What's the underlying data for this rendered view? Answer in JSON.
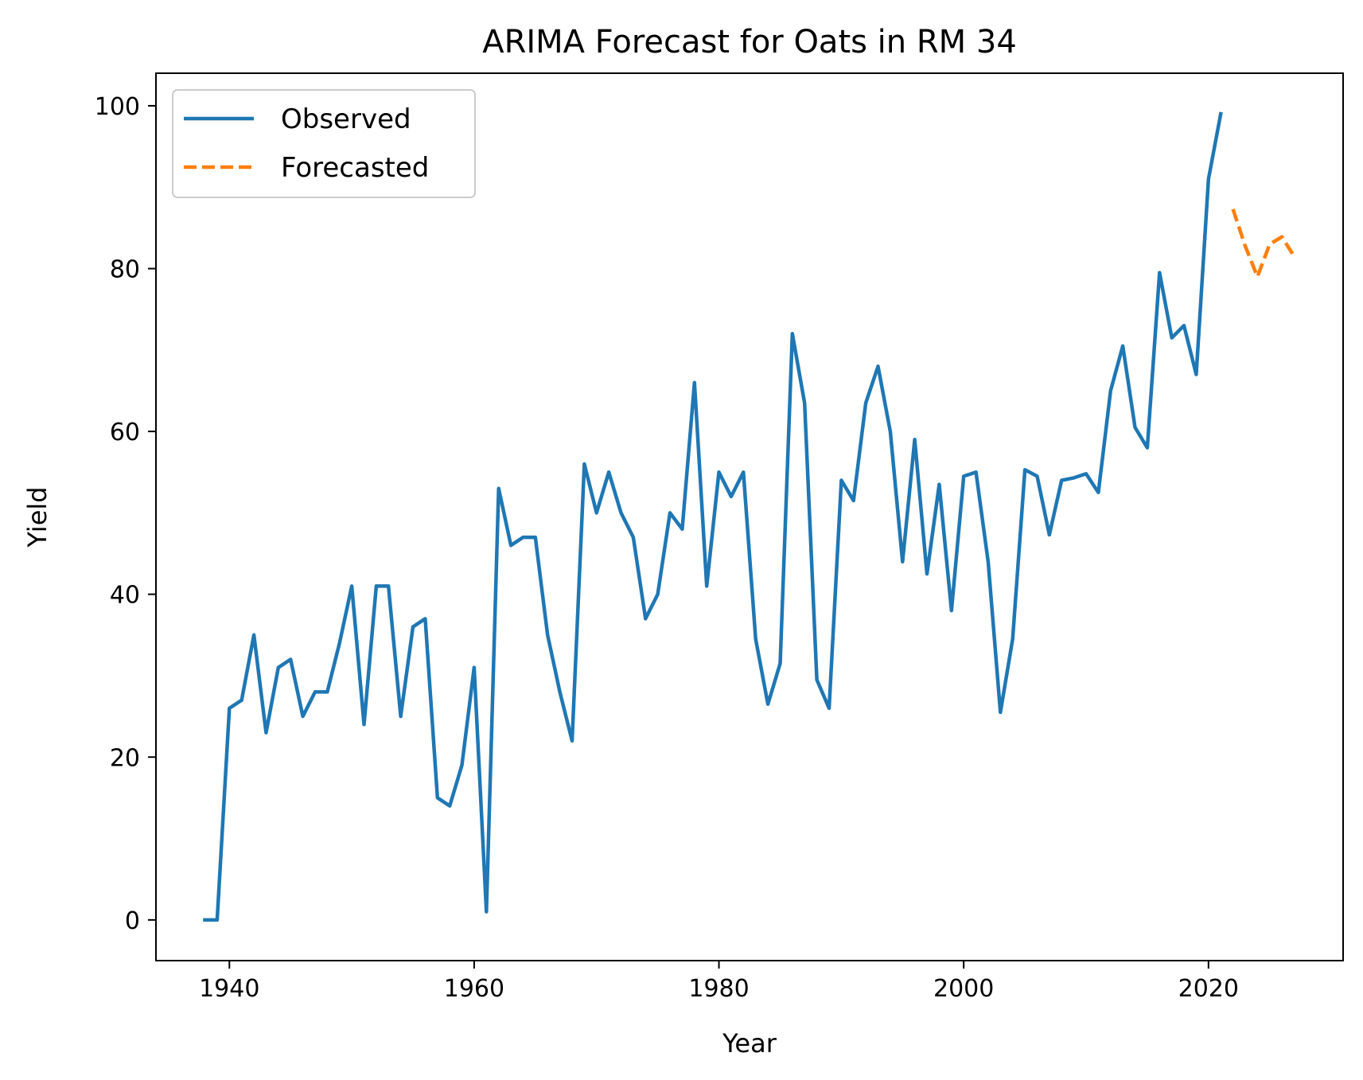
{
  "chart_data": {
    "type": "line",
    "title": "ARIMA Forecast for Oats in RM 34",
    "xlabel": "Year",
    "ylabel": "Yield",
    "xlim": [
      1934,
      2031
    ],
    "ylim": [
      -5,
      104
    ],
    "xticks": [
      1940,
      1960,
      1980,
      2000,
      2020
    ],
    "yticks": [
      0,
      20,
      40,
      60,
      80,
      100
    ],
    "grid": false,
    "legend": "top-left",
    "series": [
      {
        "name": "Observed",
        "color": "#1f77b4",
        "style": "solid",
        "x": [
          1938,
          1939,
          1940,
          1941,
          1942,
          1943,
          1944,
          1945,
          1946,
          1947,
          1948,
          1949,
          1950,
          1951,
          1952,
          1953,
          1954,
          1955,
          1956,
          1957,
          1958,
          1959,
          1960,
          1961,
          1962,
          1963,
          1964,
          1965,
          1966,
          1967,
          1968,
          1969,
          1970,
          1971,
          1972,
          1973,
          1974,
          1975,
          1976,
          1977,
          1978,
          1979,
          1980,
          1981,
          1982,
          1983,
          1984,
          1985,
          1986,
          1987,
          1988,
          1989,
          1990,
          1991,
          1992,
          1993,
          1994,
          1995,
          1996,
          1997,
          1998,
          1999,
          2000,
          2001,
          2002,
          2003,
          2004,
          2005,
          2006,
          2007,
          2008,
          2009,
          2010,
          2011,
          2012,
          2013,
          2014,
          2015,
          2016,
          2017,
          2018,
          2019,
          2020,
          2021
        ],
        "y": [
          0,
          0,
          26,
          27,
          35,
          23,
          31,
          32,
          25,
          28,
          28,
          34,
          41,
          24,
          41,
          41,
          25,
          36,
          37,
          15,
          14,
          19,
          31,
          1,
          53,
          46,
          47,
          47,
          35,
          28,
          22,
          56,
          50,
          55,
          50,
          47,
          37,
          40,
          50,
          48,
          66,
          41,
          55,
          52,
          55,
          34.5,
          26.5,
          31.5,
          72,
          63.5,
          29.5,
          26,
          54,
          51.5,
          63.5,
          68,
          60,
          44,
          59,
          42.5,
          53.5,
          38,
          54.5,
          55,
          44,
          25.5,
          34.5,
          55.3,
          54.5,
          47.3,
          54,
          54.3,
          54.8,
          52.5,
          65,
          70.5,
          60.5,
          58,
          79.5,
          71.5,
          73,
          67,
          91,
          99
        ]
      },
      {
        "name": "Forecasted",
        "color": "#ff7f0e",
        "style": "dashed",
        "x": [
          2022,
          2023,
          2024,
          2025,
          2026,
          2027
        ],
        "y": [
          87.3,
          82.8,
          79,
          83,
          83.9,
          81.5
        ]
      }
    ]
  }
}
